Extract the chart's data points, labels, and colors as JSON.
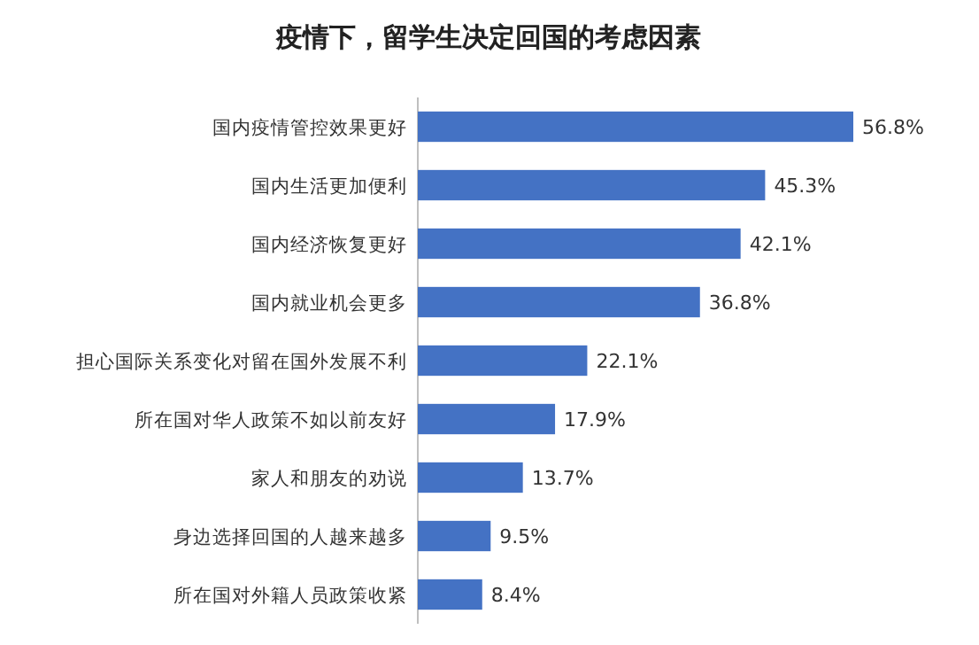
{
  "chart_data": {
    "type": "bar",
    "orientation": "horizontal",
    "title": "疫情下，留学生决定回国的考虑因素",
    "categories": [
      "国内疫情管控效果更好",
      "国内生活更加便利",
      "国内经济恢复更好",
      "国内就业机会更多",
      "担心国际关系变化对留在国外发展不利",
      "所在国对华人政策不如以前友好",
      "家人和朋友的劝说",
      "身边选择回国的人越来越多",
      "所在国对外籍人员政策收紧"
    ],
    "values": [
      56.8,
      45.3,
      42.1,
      36.8,
      22.1,
      17.9,
      13.7,
      9.5,
      8.4
    ],
    "value_labels": [
      "56.8%",
      "45.3%",
      "42.1%",
      "36.8%",
      "22.1%",
      "17.9%",
      "13.7%",
      "9.5%",
      "8.4%"
    ],
    "color": "#4472c4"
  }
}
